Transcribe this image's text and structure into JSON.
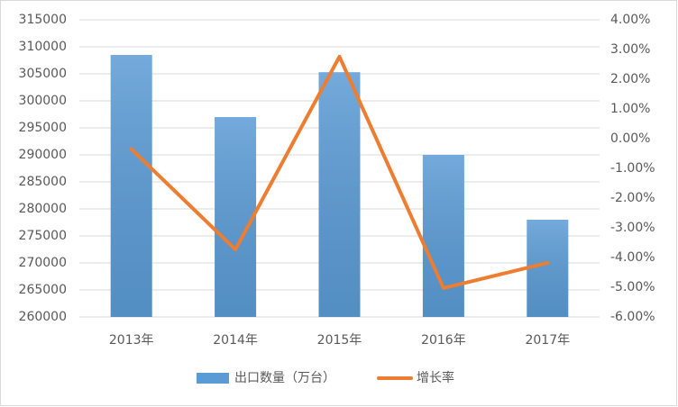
{
  "chart_data": {
    "type": "bar",
    "categories": [
      "2013年",
      "2014年",
      "2015年",
      "2016年",
      "2017年"
    ],
    "series": [
      {
        "name": "出口数量（万台）",
        "type": "bar",
        "color": "#5b9bd5",
        "values": [
          308500,
          297000,
          305300,
          290000,
          278000
        ]
      },
      {
        "name": "增长率",
        "type": "line",
        "axis": "y2",
        "color": "#ed7d31",
        "values": [
          -0.35,
          -3.73,
          2.76,
          -5.03,
          -4.18
        ]
      }
    ],
    "ylim": [
      260000,
      315000
    ],
    "yticks": [
      260000,
      265000,
      270000,
      275000,
      280000,
      285000,
      290000,
      295000,
      300000,
      305000,
      310000,
      315000
    ],
    "y2lim": [
      -6,
      4
    ],
    "y2ticks": [
      {
        "value": -6,
        "label": "-6.00%"
      },
      {
        "value": -5,
        "label": "-5.00%"
      },
      {
        "value": -4,
        "label": "-4.00%"
      },
      {
        "value": -3,
        "label": "-3.00%"
      },
      {
        "value": -2,
        "label": "-2.00%"
      },
      {
        "value": -1,
        "label": "-1.00%"
      },
      {
        "value": 0,
        "label": "0.00%"
      },
      {
        "value": 1,
        "label": "1.00%"
      },
      {
        "value": 2,
        "label": "2.00%"
      },
      {
        "value": 3,
        "label": "3.00%"
      },
      {
        "value": 4,
        "label": "4.00%"
      }
    ],
    "grid": true,
    "legend": "bottom"
  }
}
